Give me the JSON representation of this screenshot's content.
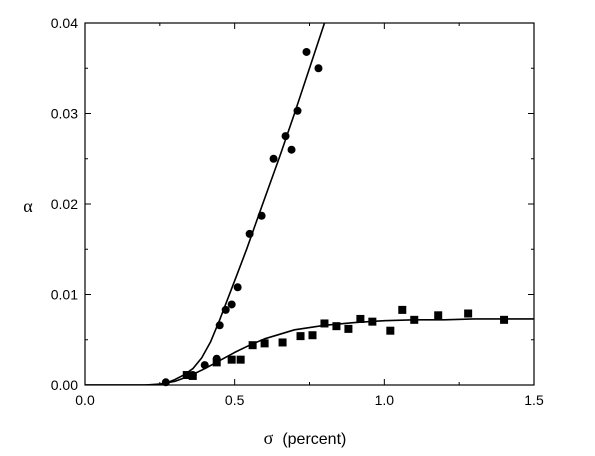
{
  "chart_data": {
    "type": "scatter",
    "xlabel": {
      "symbol": "σ",
      "unit": "(percent)"
    },
    "ylabel": "α",
    "xlim": [
      0.0,
      1.5
    ],
    "ylim": [
      0.0,
      0.04
    ],
    "x_ticks": [
      "0.0",
      "0.5",
      "1.0",
      "1.5"
    ],
    "y_ticks": [
      "0.00",
      "0.01",
      "0.02",
      "0.03",
      "0.04"
    ],
    "grid": false,
    "legend": "none",
    "series": [
      {
        "marker": "circle",
        "color": "#000000",
        "points": [
          [
            0.27,
            0.0003
          ],
          [
            0.36,
            0.0011
          ],
          [
            0.4,
            0.0022
          ],
          [
            0.44,
            0.0029
          ],
          [
            0.45,
            0.0066
          ],
          [
            0.47,
            0.0083
          ],
          [
            0.49,
            0.0089
          ],
          [
            0.51,
            0.0108
          ],
          [
            0.55,
            0.0167
          ],
          [
            0.59,
            0.0187
          ],
          [
            0.63,
            0.025
          ],
          [
            0.67,
            0.0275
          ],
          [
            0.69,
            0.026
          ],
          [
            0.71,
            0.0303
          ],
          [
            0.74,
            0.0368
          ],
          [
            0.78,
            0.035
          ]
        ],
        "fit": [
          [
            0.0,
            0.0
          ],
          [
            0.2,
            0.0
          ],
          [
            0.24,
            0.0
          ],
          [
            0.27,
            0.0002
          ],
          [
            0.3,
            0.0006
          ],
          [
            0.33,
            0.0011
          ],
          [
            0.36,
            0.0018
          ],
          [
            0.39,
            0.003
          ],
          [
            0.42,
            0.0048
          ],
          [
            0.45,
            0.0072
          ],
          [
            0.48,
            0.0098
          ],
          [
            0.51,
            0.0124
          ],
          [
            0.54,
            0.015
          ],
          [
            0.57,
            0.0178
          ],
          [
            0.6,
            0.0206
          ],
          [
            0.65,
            0.0252
          ],
          [
            0.7,
            0.03
          ],
          [
            0.75,
            0.035
          ],
          [
            0.8,
            0.04
          ]
        ]
      },
      {
        "marker": "square",
        "color": "#000000",
        "points": [
          [
            0.34,
            0.0011
          ],
          [
            0.36,
            0.001
          ],
          [
            0.44,
            0.0025
          ],
          [
            0.49,
            0.0028
          ],
          [
            0.52,
            0.0028
          ],
          [
            0.56,
            0.0044
          ],
          [
            0.6,
            0.0046
          ],
          [
            0.66,
            0.0047
          ],
          [
            0.72,
            0.0054
          ],
          [
            0.76,
            0.0055
          ],
          [
            0.8,
            0.0068
          ],
          [
            0.84,
            0.0065
          ],
          [
            0.88,
            0.0062
          ],
          [
            0.92,
            0.0073
          ],
          [
            0.96,
            0.007
          ],
          [
            1.02,
            0.006
          ],
          [
            1.06,
            0.0083
          ],
          [
            1.1,
            0.0072
          ],
          [
            1.18,
            0.0077
          ],
          [
            1.28,
            0.0079
          ],
          [
            1.4,
            0.0072
          ]
        ],
        "fit": [
          [
            0.0,
            0.0
          ],
          [
            0.2,
            0.0
          ],
          [
            0.25,
            0.0001
          ],
          [
            0.3,
            0.0004
          ],
          [
            0.35,
            0.001
          ],
          [
            0.4,
            0.0018
          ],
          [
            0.45,
            0.0027
          ],
          [
            0.5,
            0.0036
          ],
          [
            0.55,
            0.0044
          ],
          [
            0.6,
            0.0051
          ],
          [
            0.65,
            0.0056
          ],
          [
            0.7,
            0.0061
          ],
          [
            0.8,
            0.0066
          ],
          [
            0.9,
            0.0069
          ],
          [
            1.0,
            0.0071
          ],
          [
            1.1,
            0.0072
          ],
          [
            1.2,
            0.0072
          ],
          [
            1.3,
            0.0073
          ],
          [
            1.4,
            0.0073
          ],
          [
            1.5,
            0.0073
          ]
        ]
      }
    ]
  }
}
